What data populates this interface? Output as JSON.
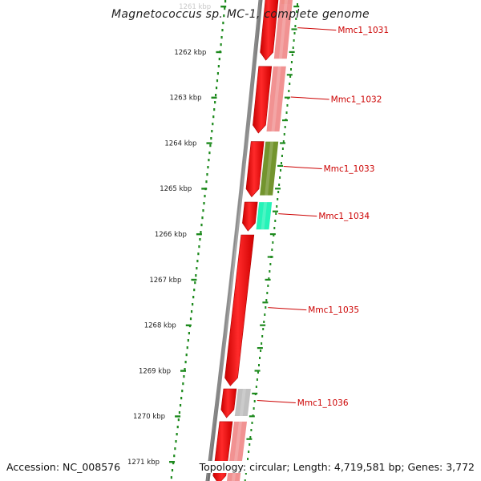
{
  "title": "Magnetococcus sp. MC-1, complete genome",
  "footer": {
    "accession": "Accession: NC_008576",
    "summary": "Topology: circular; Length: 4,719,581 bp; Genes: 3,772"
  },
  "ruler": {
    "unit": "kbp",
    "labels": [
      "1261 kbp",
      "1262 kbp",
      "1263 kbp",
      "1264 kbp",
      "1265 kbp",
      "1266 kbp",
      "1267 kbp",
      "1268 kbp",
      "1269 kbp",
      "1270 kbp",
      "1271 kbp"
    ]
  },
  "colors": {
    "ruler": "#1e8a1e",
    "backbone": "#8a8a8a",
    "gene_forward": "#ff0000",
    "label": "#cc0000",
    "leader": "#cc0000"
  },
  "genes": [
    {
      "name": "Mmc1_1031",
      "start_kbp": 1260.8,
      "end_kbp": 1262.2,
      "strand": "+",
      "category_color": "#f08c8c",
      "labeled": true
    },
    {
      "name": "Mmc1_1032",
      "start_kbp": 1262.3,
      "end_kbp": 1263.8,
      "strand": "+",
      "category_color": "#f08c8c",
      "labeled": true
    },
    {
      "name": "Mmc1_1033",
      "start_kbp": 1263.95,
      "end_kbp": 1265.2,
      "strand": "+",
      "category_color": "#6b8e23",
      "labeled": true
    },
    {
      "name": "Mmc1_1034",
      "start_kbp": 1265.28,
      "end_kbp": 1265.95,
      "strand": "+",
      "category_color": "#19f2b4",
      "labeled": true
    },
    {
      "name": "Mmc1_1035",
      "start_kbp": 1266.0,
      "end_kbp": 1269.35,
      "strand": "+",
      "category_color": "",
      "labeled": true
    },
    {
      "name": "Mmc1_1036",
      "start_kbp": 1269.38,
      "end_kbp": 1270.05,
      "strand": "+",
      "category_color": "#bdbdbd",
      "labeled": true
    },
    {
      "name": "",
      "start_kbp": 1270.1,
      "end_kbp": 1271.5,
      "strand": "+",
      "category_color": "#f08c8c",
      "labeled": false
    }
  ]
}
